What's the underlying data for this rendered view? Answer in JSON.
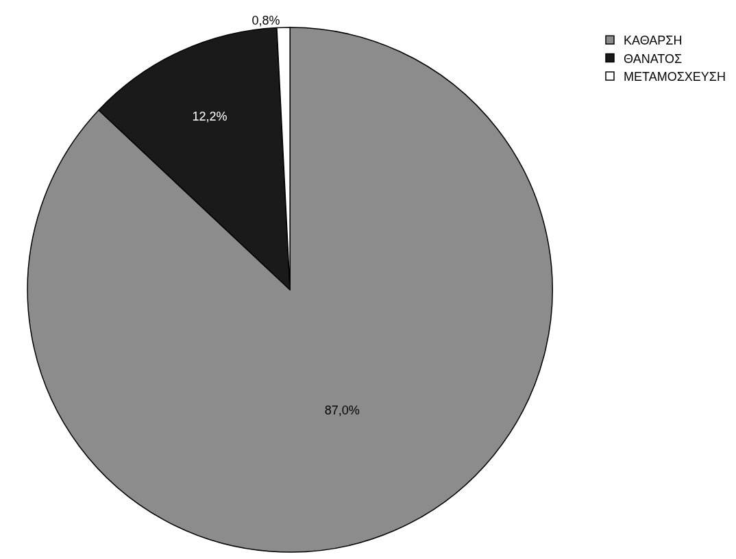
{
  "chart_data": {
    "type": "pie",
    "categories": [
      "ΚΑΘΑΡΣΗ",
      "ΘΑΝΑΤΟΣ",
      "ΜΕΤΑΜΟΣΧΕΥΣΗ"
    ],
    "values": [
      87.0,
      12.2,
      0.8
    ],
    "value_labels": [
      "87,0%",
      "12,2%",
      "0,8%"
    ],
    "colors": [
      "#8c8c8c",
      "#1a1a1a",
      "#ffffff"
    ],
    "legend": "top right"
  }
}
